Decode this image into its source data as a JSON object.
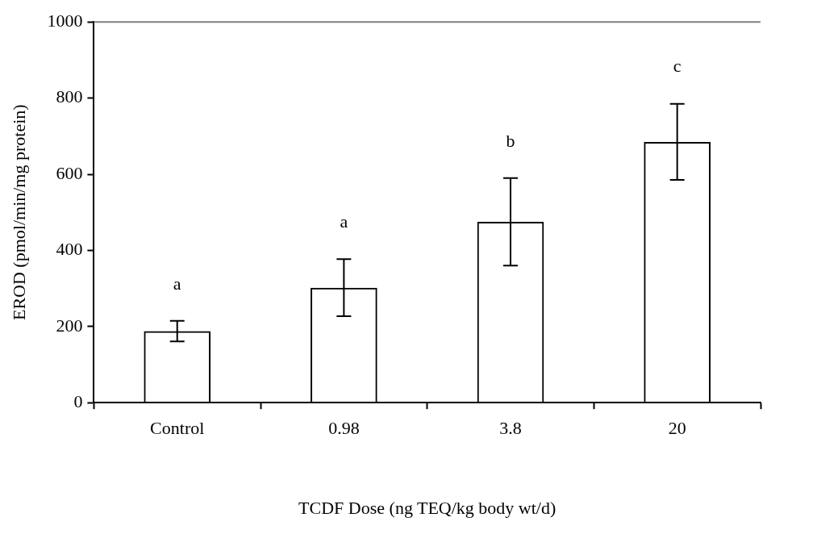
{
  "chart_data": {
    "type": "bar",
    "xlabel": "TCDF Dose (ng TEQ/kg body wt/d)",
    "ylabel": "EROD (pmol/min/mg protein)",
    "categories": [
      "Control",
      "0.98",
      "3.8",
      "20"
    ],
    "values": [
      188,
      302,
      475,
      685
    ],
    "errors": [
      27,
      75,
      115,
      100
    ],
    "color": "#000000",
    "ylim": [
      0,
      1000
    ],
    "yticks": [
      0,
      200,
      400,
      600,
      800,
      1000
    ],
    "grid": false,
    "legend": false,
    "annotations": [
      "a",
      "a",
      "b",
      "c"
    ]
  }
}
